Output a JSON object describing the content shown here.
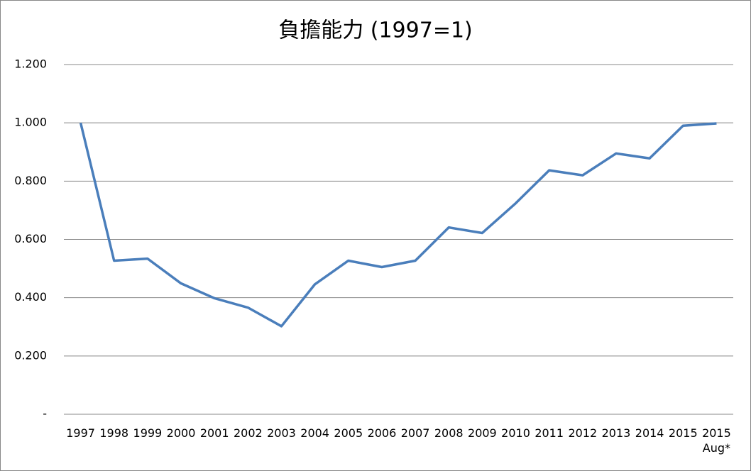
{
  "chart_data": {
    "type": "line",
    "title": "負擔能力 (1997=1)",
    "categories": [
      "1997",
      "1998",
      "1999",
      "2000",
      "2001",
      "2002",
      "2003",
      "2004",
      "2005",
      "2006",
      "2007",
      "2008",
      "2009",
      "2010",
      "2011",
      "2012",
      "2013",
      "2014",
      "2015",
      "2015\nAug*"
    ],
    "values": [
      1.0,
      0.527,
      0.534,
      0.449,
      0.398,
      0.366,
      0.302,
      0.446,
      0.527,
      0.505,
      0.527,
      0.641,
      0.622,
      0.724,
      0.837,
      0.82,
      0.895,
      0.878,
      0.99,
      0.998
    ],
    "color": "#4a7ebb",
    "ylim": [
      0,
      1.2
    ],
    "yticks": [
      {
        "value": 0,
        "label": "-"
      },
      {
        "value": 0.2,
        "label": "0.200"
      },
      {
        "value": 0.4,
        "label": "0.400"
      },
      {
        "value": 0.6,
        "label": "0.600"
      },
      {
        "value": 0.8,
        "label": "0.800"
      },
      {
        "value": 1.0,
        "label": "1.000"
      },
      {
        "value": 1.2,
        "label": "1.200"
      }
    ],
    "grid": true
  }
}
